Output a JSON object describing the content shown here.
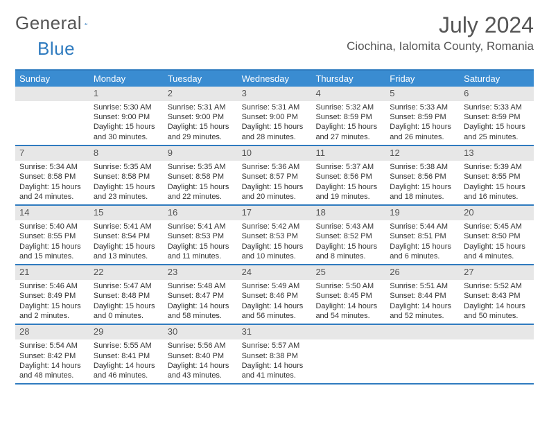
{
  "logo": {
    "text1": "General",
    "text2": "Blue"
  },
  "title": "July 2024",
  "location": "Ciochina, Ialomita County, Romania",
  "colors": {
    "header_bg": "#3a8cd1",
    "border": "#2f7bbf",
    "daynum_bg": "#e7e7e7",
    "text": "#333333",
    "muted": "#555555"
  },
  "daysOfWeek": [
    "Sunday",
    "Monday",
    "Tuesday",
    "Wednesday",
    "Thursday",
    "Friday",
    "Saturday"
  ],
  "weeks": [
    [
      null,
      {
        "n": "1",
        "sr": "5:30 AM",
        "ss": "9:00 PM",
        "dl": "15 hours and 30 minutes."
      },
      {
        "n": "2",
        "sr": "5:31 AM",
        "ss": "9:00 PM",
        "dl": "15 hours and 29 minutes."
      },
      {
        "n": "3",
        "sr": "5:31 AM",
        "ss": "9:00 PM",
        "dl": "15 hours and 28 minutes."
      },
      {
        "n": "4",
        "sr": "5:32 AM",
        "ss": "8:59 PM",
        "dl": "15 hours and 27 minutes."
      },
      {
        "n": "5",
        "sr": "5:33 AM",
        "ss": "8:59 PM",
        "dl": "15 hours and 26 minutes."
      },
      {
        "n": "6",
        "sr": "5:33 AM",
        "ss": "8:59 PM",
        "dl": "15 hours and 25 minutes."
      }
    ],
    [
      {
        "n": "7",
        "sr": "5:34 AM",
        "ss": "8:58 PM",
        "dl": "15 hours and 24 minutes."
      },
      {
        "n": "8",
        "sr": "5:35 AM",
        "ss": "8:58 PM",
        "dl": "15 hours and 23 minutes."
      },
      {
        "n": "9",
        "sr": "5:35 AM",
        "ss": "8:58 PM",
        "dl": "15 hours and 22 minutes."
      },
      {
        "n": "10",
        "sr": "5:36 AM",
        "ss": "8:57 PM",
        "dl": "15 hours and 20 minutes."
      },
      {
        "n": "11",
        "sr": "5:37 AM",
        "ss": "8:56 PM",
        "dl": "15 hours and 19 minutes."
      },
      {
        "n": "12",
        "sr": "5:38 AM",
        "ss": "8:56 PM",
        "dl": "15 hours and 18 minutes."
      },
      {
        "n": "13",
        "sr": "5:39 AM",
        "ss": "8:55 PM",
        "dl": "15 hours and 16 minutes."
      }
    ],
    [
      {
        "n": "14",
        "sr": "5:40 AM",
        "ss": "8:55 PM",
        "dl": "15 hours and 15 minutes."
      },
      {
        "n": "15",
        "sr": "5:41 AM",
        "ss": "8:54 PM",
        "dl": "15 hours and 13 minutes."
      },
      {
        "n": "16",
        "sr": "5:41 AM",
        "ss": "8:53 PM",
        "dl": "15 hours and 11 minutes."
      },
      {
        "n": "17",
        "sr": "5:42 AM",
        "ss": "8:53 PM",
        "dl": "15 hours and 10 minutes."
      },
      {
        "n": "18",
        "sr": "5:43 AM",
        "ss": "8:52 PM",
        "dl": "15 hours and 8 minutes."
      },
      {
        "n": "19",
        "sr": "5:44 AM",
        "ss": "8:51 PM",
        "dl": "15 hours and 6 minutes."
      },
      {
        "n": "20",
        "sr": "5:45 AM",
        "ss": "8:50 PM",
        "dl": "15 hours and 4 minutes."
      }
    ],
    [
      {
        "n": "21",
        "sr": "5:46 AM",
        "ss": "8:49 PM",
        "dl": "15 hours and 2 minutes."
      },
      {
        "n": "22",
        "sr": "5:47 AM",
        "ss": "8:48 PM",
        "dl": "15 hours and 0 minutes."
      },
      {
        "n": "23",
        "sr": "5:48 AM",
        "ss": "8:47 PM",
        "dl": "14 hours and 58 minutes."
      },
      {
        "n": "24",
        "sr": "5:49 AM",
        "ss": "8:46 PM",
        "dl": "14 hours and 56 minutes."
      },
      {
        "n": "25",
        "sr": "5:50 AM",
        "ss": "8:45 PM",
        "dl": "14 hours and 54 minutes."
      },
      {
        "n": "26",
        "sr": "5:51 AM",
        "ss": "8:44 PM",
        "dl": "14 hours and 52 minutes."
      },
      {
        "n": "27",
        "sr": "5:52 AM",
        "ss": "8:43 PM",
        "dl": "14 hours and 50 minutes."
      }
    ],
    [
      {
        "n": "28",
        "sr": "5:54 AM",
        "ss": "8:42 PM",
        "dl": "14 hours and 48 minutes."
      },
      {
        "n": "29",
        "sr": "5:55 AM",
        "ss": "8:41 PM",
        "dl": "14 hours and 46 minutes."
      },
      {
        "n": "30",
        "sr": "5:56 AM",
        "ss": "8:40 PM",
        "dl": "14 hours and 43 minutes."
      },
      {
        "n": "31",
        "sr": "5:57 AM",
        "ss": "8:38 PM",
        "dl": "14 hours and 41 minutes."
      },
      null,
      null,
      null
    ]
  ],
  "labels": {
    "sunrise": "Sunrise:",
    "sunset": "Sunset:",
    "daylight": "Daylight:"
  }
}
